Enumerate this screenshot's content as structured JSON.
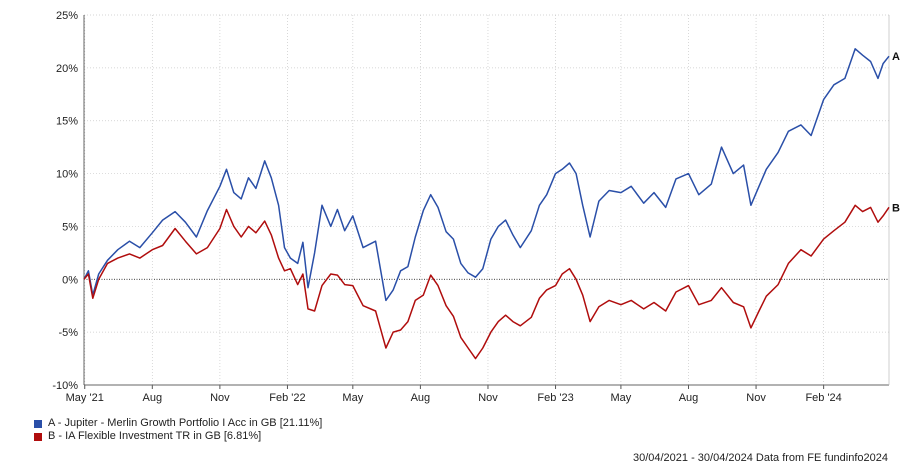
{
  "chart_data": {
    "type": "line",
    "title": "",
    "xlabel": "",
    "ylabel": "",
    "y_unit": "%",
    "ylim": [
      -10,
      25
    ],
    "y_ticks": [
      -10,
      -5,
      0,
      5,
      10,
      15,
      20,
      25
    ],
    "y_tick_labels": [
      "-10%",
      "-5%",
      "0%",
      "5%",
      "10%",
      "15%",
      "20%",
      "25%"
    ],
    "x_range": [
      "2021-04-30",
      "2024-04-30"
    ],
    "x_ticks": [
      {
        "date": "2021-05-01",
        "label": "May '21"
      },
      {
        "date": "2021-08-01",
        "label": "Aug"
      },
      {
        "date": "2021-11-01",
        "label": "Nov"
      },
      {
        "date": "2022-02-01",
        "label": "Feb '22"
      },
      {
        "date": "2022-05-01",
        "label": "May"
      },
      {
        "date": "2022-08-01",
        "label": "Aug"
      },
      {
        "date": "2022-11-01",
        "label": "Nov"
      },
      {
        "date": "2023-02-01",
        "label": "Feb '23"
      },
      {
        "date": "2023-05-01",
        "label": "May"
      },
      {
        "date": "2023-08-01",
        "label": "Aug"
      },
      {
        "date": "2023-11-01",
        "label": "Nov"
      },
      {
        "date": "2024-02-01",
        "label": "Feb '24"
      }
    ],
    "grid": true,
    "zero_line": "dotted",
    "series": [
      {
        "name": "A - Jupiter - Merlin Growth Portfolio I Acc in GB [21.11%]",
        "end_label": "A",
        "color": "#2a4fa8",
        "points": [
          [
            "2021-04-30",
            0.0
          ],
          [
            "2021-05-06",
            0.8
          ],
          [
            "2021-05-12",
            -1.5
          ],
          [
            "2021-05-20",
            0.5
          ],
          [
            "2021-06-01",
            1.8
          ],
          [
            "2021-06-15",
            2.8
          ],
          [
            "2021-07-01",
            3.6
          ],
          [
            "2021-07-15",
            3.0
          ],
          [
            "2021-08-01",
            4.4
          ],
          [
            "2021-08-15",
            5.6
          ],
          [
            "2021-09-01",
            6.4
          ],
          [
            "2021-09-15",
            5.4
          ],
          [
            "2021-09-30",
            4.0
          ],
          [
            "2021-10-15",
            6.5
          ],
          [
            "2021-11-01",
            8.8
          ],
          [
            "2021-11-10",
            10.4
          ],
          [
            "2021-11-20",
            8.2
          ],
          [
            "2021-11-30",
            7.6
          ],
          [
            "2021-12-10",
            9.6
          ],
          [
            "2021-12-20",
            8.6
          ],
          [
            "2022-01-01",
            11.2
          ],
          [
            "2022-01-10",
            9.6
          ],
          [
            "2022-01-20",
            7.0
          ],
          [
            "2022-01-28",
            3.0
          ],
          [
            "2022-02-05",
            2.0
          ],
          [
            "2022-02-15",
            1.5
          ],
          [
            "2022-02-22",
            3.5
          ],
          [
            "2022-03-01",
            -0.8
          ],
          [
            "2022-03-10",
            2.5
          ],
          [
            "2022-03-20",
            7.0
          ],
          [
            "2022-04-01",
            5.0
          ],
          [
            "2022-04-10",
            6.6
          ],
          [
            "2022-04-20",
            4.6
          ],
          [
            "2022-05-01",
            6.0
          ],
          [
            "2022-05-15",
            3.0
          ],
          [
            "2022-06-01",
            3.6
          ],
          [
            "2022-06-15",
            -2.0
          ],
          [
            "2022-06-25",
            -1.0
          ],
          [
            "2022-07-05",
            0.8
          ],
          [
            "2022-07-15",
            1.2
          ],
          [
            "2022-07-25",
            4.0
          ],
          [
            "2022-08-05",
            6.5
          ],
          [
            "2022-08-15",
            8.0
          ],
          [
            "2022-08-25",
            6.8
          ],
          [
            "2022-09-05",
            4.5
          ],
          [
            "2022-09-15",
            3.8
          ],
          [
            "2022-09-25",
            1.5
          ],
          [
            "2022-10-05",
            0.6
          ],
          [
            "2022-10-15",
            0.2
          ],
          [
            "2022-10-25",
            1.0
          ],
          [
            "2022-11-05",
            3.8
          ],
          [
            "2022-11-15",
            5.0
          ],
          [
            "2022-11-25",
            5.6
          ],
          [
            "2022-12-05",
            4.2
          ],
          [
            "2022-12-15",
            3.0
          ],
          [
            "2022-12-30",
            4.6
          ],
          [
            "2023-01-10",
            7.0
          ],
          [
            "2023-01-20",
            8.0
          ],
          [
            "2023-02-01",
            10.0
          ],
          [
            "2023-02-10",
            10.4
          ],
          [
            "2023-02-20",
            11.0
          ],
          [
            "2023-03-01",
            10.0
          ],
          [
            "2023-03-10",
            7.0
          ],
          [
            "2023-03-20",
            4.0
          ],
          [
            "2023-04-01",
            7.4
          ],
          [
            "2023-04-15",
            8.4
          ],
          [
            "2023-05-01",
            8.2
          ],
          [
            "2023-05-15",
            8.8
          ],
          [
            "2023-06-01",
            7.2
          ],
          [
            "2023-06-15",
            8.2
          ],
          [
            "2023-07-01",
            6.8
          ],
          [
            "2023-07-15",
            9.5
          ],
          [
            "2023-08-01",
            10.0
          ],
          [
            "2023-08-15",
            8.0
          ],
          [
            "2023-09-01",
            9.0
          ],
          [
            "2023-09-15",
            12.5
          ],
          [
            "2023-10-01",
            10.0
          ],
          [
            "2023-10-15",
            10.8
          ],
          [
            "2023-10-25",
            7.0
          ],
          [
            "2023-11-05",
            8.8
          ],
          [
            "2023-11-15",
            10.4
          ],
          [
            "2023-12-01",
            12.0
          ],
          [
            "2023-12-15",
            14.0
          ],
          [
            "2024-01-01",
            14.6
          ],
          [
            "2024-01-15",
            13.6
          ],
          [
            "2024-02-01",
            17.0
          ],
          [
            "2024-02-15",
            18.4
          ],
          [
            "2024-03-01",
            19.0
          ],
          [
            "2024-03-15",
            21.8
          ],
          [
            "2024-03-25",
            21.2
          ],
          [
            "2024-04-05",
            20.6
          ],
          [
            "2024-04-15",
            19.0
          ],
          [
            "2024-04-22",
            20.4
          ],
          [
            "2024-04-30",
            21.1
          ]
        ]
      },
      {
        "name": "B - IA Flexible Investment TR in GB [6.81%]",
        "end_label": "B",
        "color": "#b00d0d",
        "points": [
          [
            "2021-04-30",
            0.0
          ],
          [
            "2021-05-06",
            0.5
          ],
          [
            "2021-05-12",
            -1.8
          ],
          [
            "2021-05-20",
            0.0
          ],
          [
            "2021-06-01",
            1.5
          ],
          [
            "2021-06-15",
            2.0
          ],
          [
            "2021-07-01",
            2.4
          ],
          [
            "2021-07-15",
            2.0
          ],
          [
            "2021-08-01",
            2.8
          ],
          [
            "2021-08-15",
            3.2
          ],
          [
            "2021-09-01",
            4.8
          ],
          [
            "2021-09-15",
            3.6
          ],
          [
            "2021-09-30",
            2.4
          ],
          [
            "2021-10-15",
            3.0
          ],
          [
            "2021-11-01",
            4.8
          ],
          [
            "2021-11-10",
            6.6
          ],
          [
            "2021-11-20",
            5.0
          ],
          [
            "2021-11-30",
            4.0
          ],
          [
            "2021-12-10",
            5.0
          ],
          [
            "2021-12-20",
            4.4
          ],
          [
            "2022-01-01",
            5.5
          ],
          [
            "2022-01-10",
            4.2
          ],
          [
            "2022-01-20",
            2.0
          ],
          [
            "2022-01-28",
            0.8
          ],
          [
            "2022-02-05",
            1.0
          ],
          [
            "2022-02-15",
            -0.5
          ],
          [
            "2022-02-22",
            0.5
          ],
          [
            "2022-03-01",
            -2.8
          ],
          [
            "2022-03-10",
            -3.0
          ],
          [
            "2022-03-20",
            -0.6
          ],
          [
            "2022-04-01",
            0.5
          ],
          [
            "2022-04-10",
            0.4
          ],
          [
            "2022-04-20",
            -0.5
          ],
          [
            "2022-05-01",
            -0.6
          ],
          [
            "2022-05-15",
            -2.5
          ],
          [
            "2022-06-01",
            -3.0
          ],
          [
            "2022-06-15",
            -6.5
          ],
          [
            "2022-06-25",
            -5.0
          ],
          [
            "2022-07-05",
            -4.8
          ],
          [
            "2022-07-15",
            -4.0
          ],
          [
            "2022-07-25",
            -2.0
          ],
          [
            "2022-08-05",
            -1.5
          ],
          [
            "2022-08-15",
            0.4
          ],
          [
            "2022-08-25",
            -0.6
          ],
          [
            "2022-09-05",
            -2.5
          ],
          [
            "2022-09-15",
            -3.5
          ],
          [
            "2022-09-25",
            -5.5
          ],
          [
            "2022-10-05",
            -6.5
          ],
          [
            "2022-10-15",
            -7.5
          ],
          [
            "2022-10-25",
            -6.5
          ],
          [
            "2022-11-05",
            -5.0
          ],
          [
            "2022-11-15",
            -4.0
          ],
          [
            "2022-11-25",
            -3.4
          ],
          [
            "2022-12-05",
            -4.0
          ],
          [
            "2022-12-15",
            -4.4
          ],
          [
            "2022-12-30",
            -3.6
          ],
          [
            "2023-01-10",
            -1.8
          ],
          [
            "2023-01-20",
            -1.0
          ],
          [
            "2023-02-01",
            -0.6
          ],
          [
            "2023-02-10",
            0.5
          ],
          [
            "2023-02-20",
            1.0
          ],
          [
            "2023-03-01",
            0.0
          ],
          [
            "2023-03-10",
            -1.5
          ],
          [
            "2023-03-20",
            -4.0
          ],
          [
            "2023-04-01",
            -2.6
          ],
          [
            "2023-04-15",
            -2.0
          ],
          [
            "2023-05-01",
            -2.4
          ],
          [
            "2023-05-15",
            -2.0
          ],
          [
            "2023-06-01",
            -2.8
          ],
          [
            "2023-06-15",
            -2.2
          ],
          [
            "2023-07-01",
            -3.0
          ],
          [
            "2023-07-15",
            -1.2
          ],
          [
            "2023-08-01",
            -0.6
          ],
          [
            "2023-08-15",
            -2.4
          ],
          [
            "2023-09-01",
            -2.0
          ],
          [
            "2023-09-15",
            -0.8
          ],
          [
            "2023-10-01",
            -2.2
          ],
          [
            "2023-10-15",
            -2.6
          ],
          [
            "2023-10-25",
            -4.6
          ],
          [
            "2023-11-05",
            -3.0
          ],
          [
            "2023-11-15",
            -1.6
          ],
          [
            "2023-12-01",
            -0.5
          ],
          [
            "2023-12-15",
            1.5
          ],
          [
            "2024-01-01",
            2.8
          ],
          [
            "2024-01-15",
            2.2
          ],
          [
            "2024-02-01",
            3.8
          ],
          [
            "2024-02-15",
            4.6
          ],
          [
            "2024-03-01",
            5.4
          ],
          [
            "2024-03-15",
            7.0
          ],
          [
            "2024-03-25",
            6.4
          ],
          [
            "2024-04-05",
            6.8
          ],
          [
            "2024-04-15",
            5.4
          ],
          [
            "2024-04-22",
            6.0
          ],
          [
            "2024-04-30",
            6.81
          ]
        ]
      }
    ]
  },
  "footer": {
    "date_range": "30/04/2021 - 30/04/2024",
    "source": "Data from FE fundinfo2024"
  }
}
